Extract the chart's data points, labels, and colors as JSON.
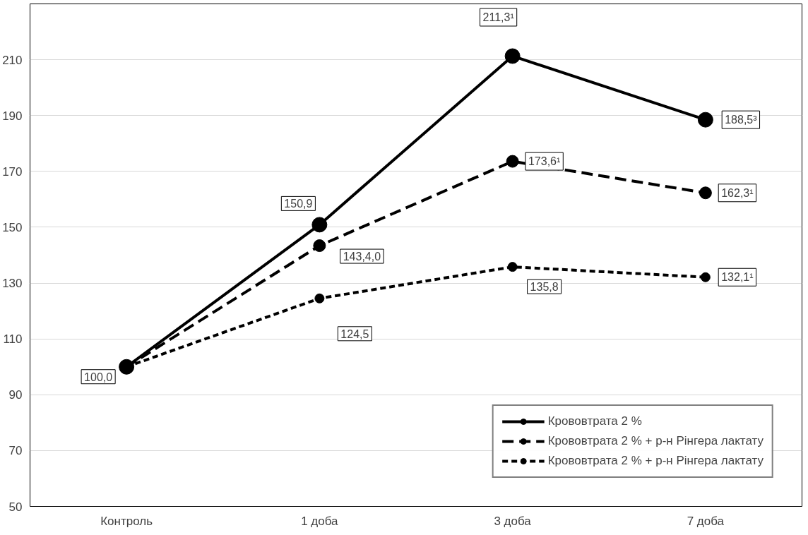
{
  "chart_data": {
    "type": "line",
    "categories": [
      "Контроль",
      "1 доба",
      "3 доба",
      "7 доба"
    ],
    "series": [
      {
        "name": "Крововтрата 2 %",
        "color": "#000000",
        "line_style": "solid",
        "values": [
          100.0,
          150.9,
          211.3,
          188.5
        ],
        "value_labels": [
          "100,0",
          "150,9",
          "211,3¹",
          "188,5³"
        ]
      },
      {
        "name": "Крововтрата 2 % + р-н Рінгера лактату",
        "color": "#000000",
        "line_style": "dashed",
        "values": [
          100.0,
          143.4,
          173.6,
          162.3
        ],
        "value_labels": [
          null,
          "143,4,0",
          "173,6¹",
          "162,3¹"
        ]
      },
      {
        "name": "Крововтрата 2 % + р-н Рінгера лактату",
        "color": "#000000",
        "line_style": "dotted",
        "values": [
          100.0,
          124.5,
          135.8,
          132.1
        ],
        "value_labels": [
          null,
          "124,5",
          "135,8",
          "132,1¹"
        ]
      }
    ],
    "ylim": [
      50,
      230
    ],
    "yticks": [
      50,
      70,
      90,
      110,
      130,
      150,
      170,
      190,
      210
    ],
    "grid": "y",
    "legend": "bottom right",
    "marker": "circle"
  }
}
